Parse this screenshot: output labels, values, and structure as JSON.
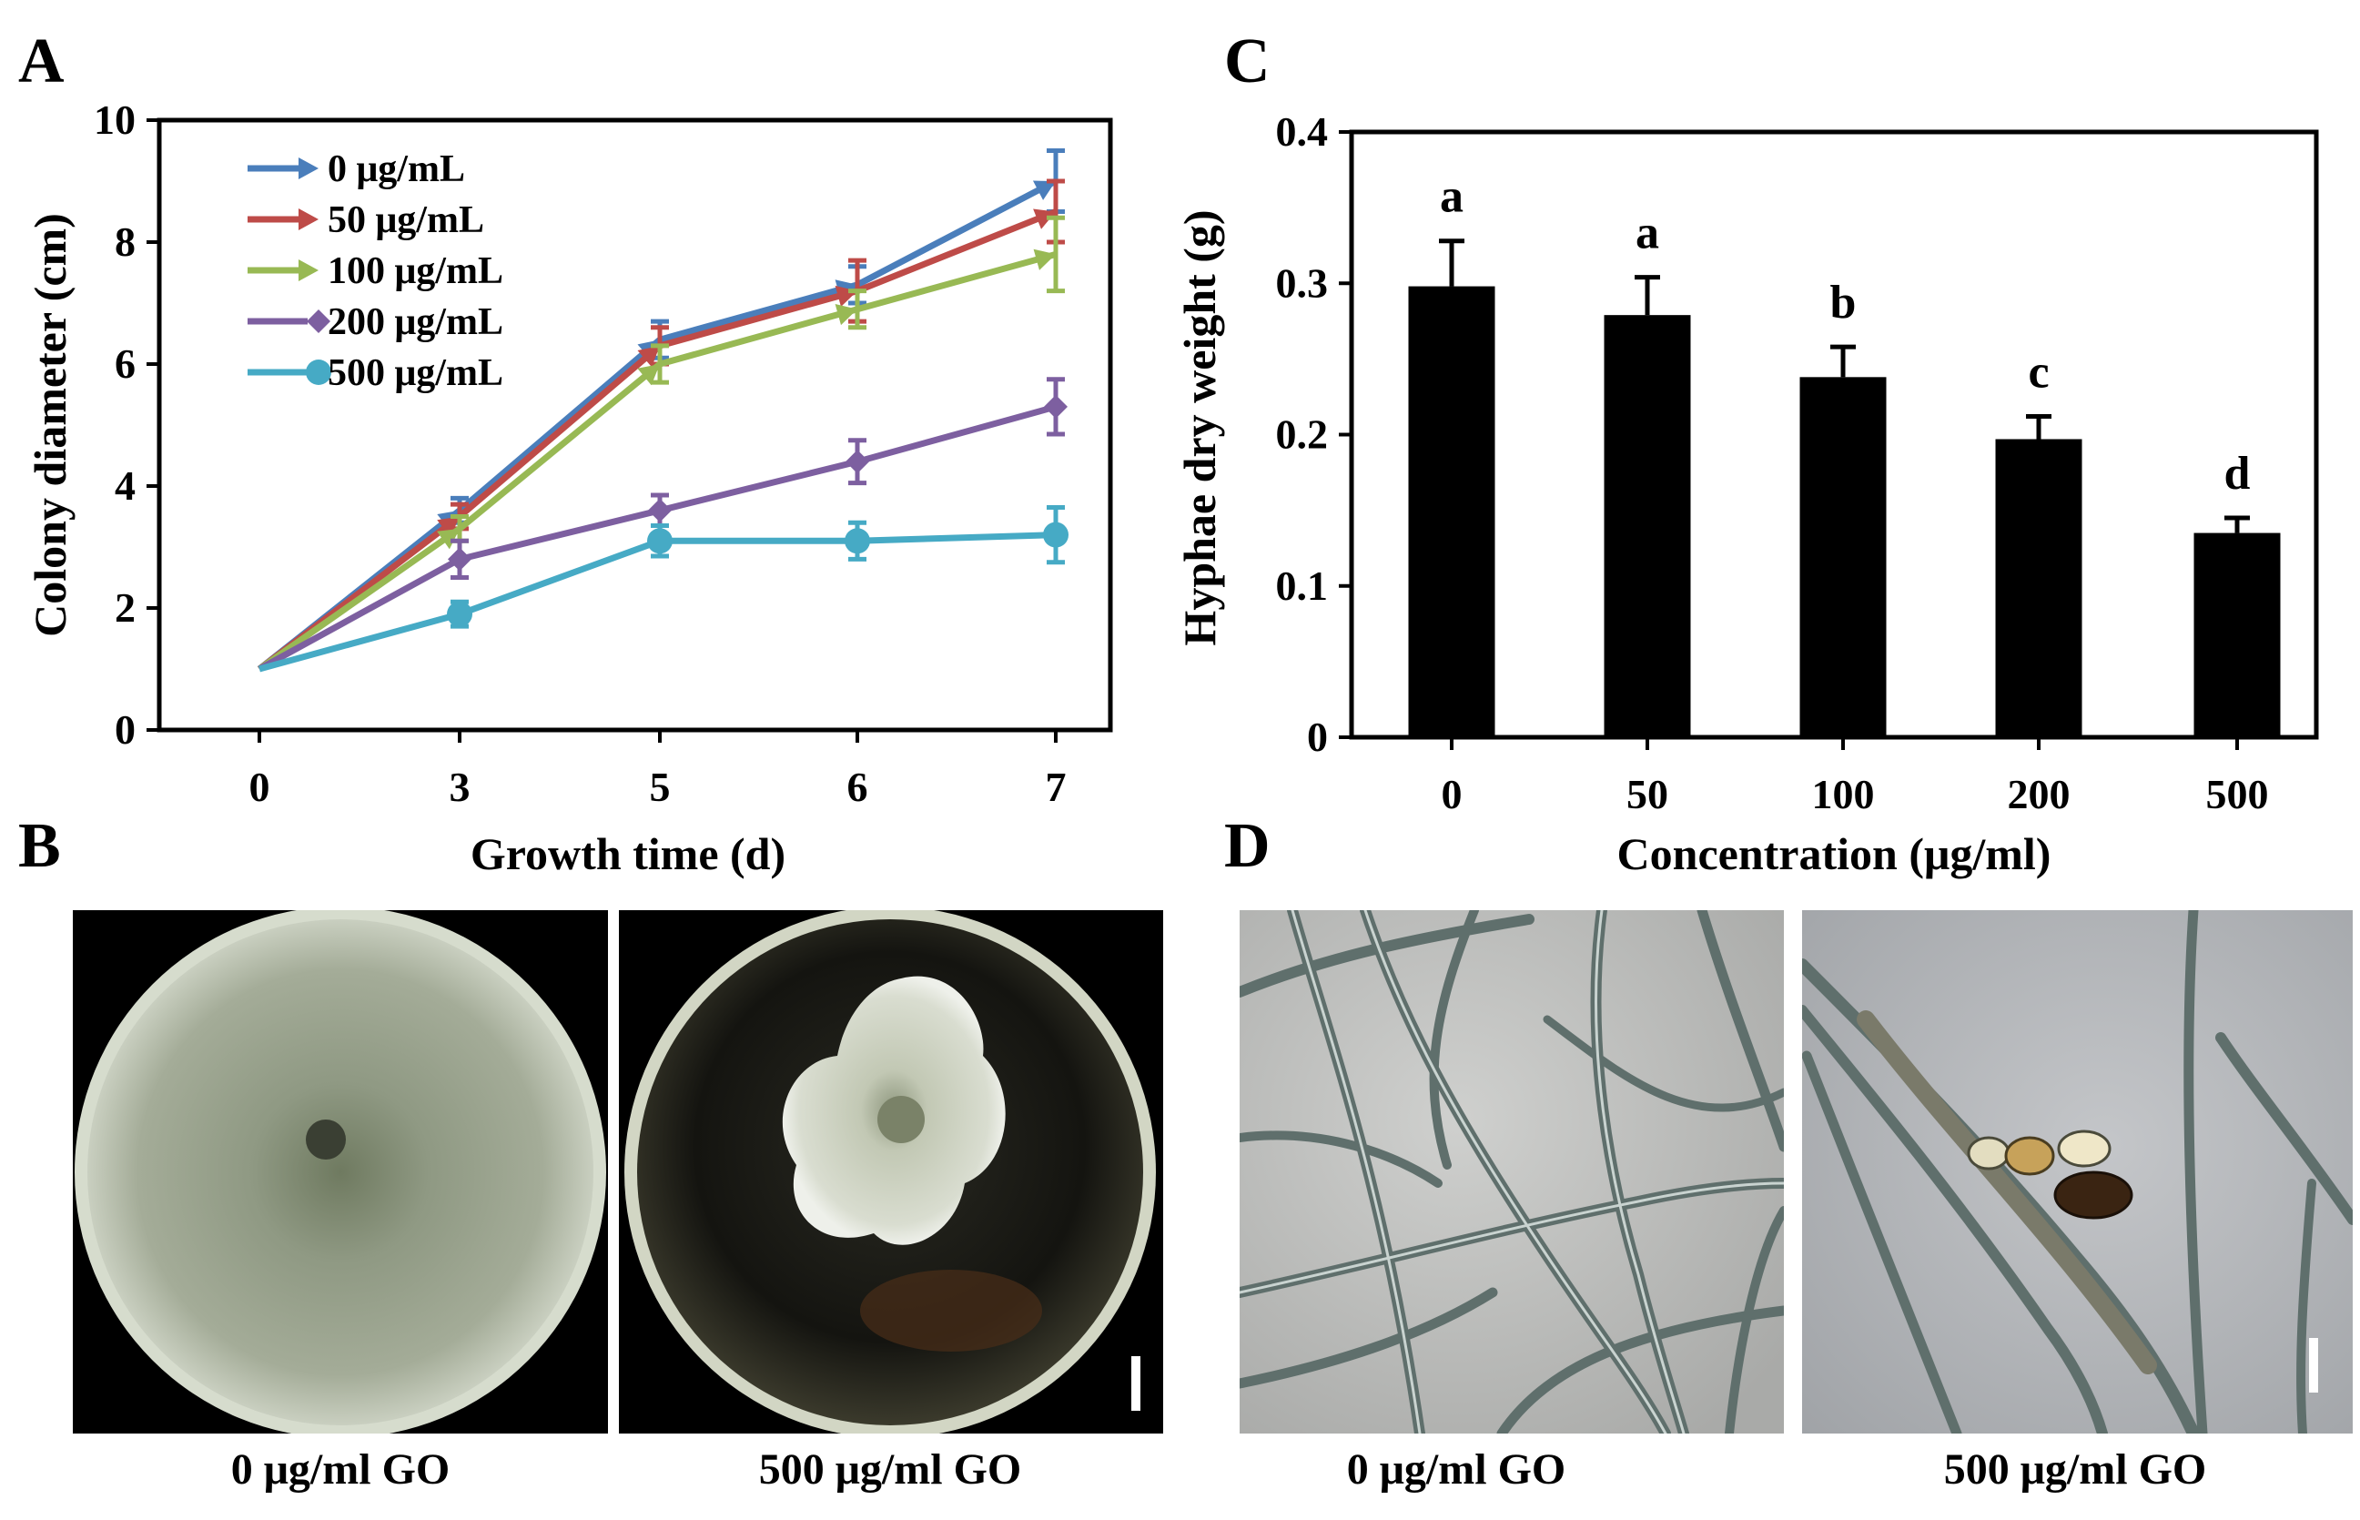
{
  "panels": {
    "A": "A",
    "B": "B",
    "C": "C",
    "D": "D"
  },
  "chart_data": [
    {
      "panel": "A",
      "type": "line",
      "x": [
        0,
        3,
        5,
        6,
        7
      ],
      "xlabel": "Growth time (d)",
      "ylabel": "Colony diameter (cm)",
      "ylim": [
        0,
        10
      ],
      "yticks": [
        0,
        2,
        4,
        6,
        8,
        10
      ],
      "legend_position": "top-left",
      "series": [
        {
          "name": "0 μg/mL",
          "color": "#4a7ebb",
          "marker": "arrow",
          "values": [
            1.0,
            3.6,
            6.4,
            7.3,
            9.0
          ],
          "errors": [
            0,
            0.2,
            0.3,
            0.3,
            0.5
          ]
        },
        {
          "name": "50 μg/mL",
          "color": "#be4b48",
          "marker": "arrow",
          "values": [
            1.0,
            3.5,
            6.3,
            7.2,
            8.5
          ],
          "errors": [
            0,
            0.2,
            0.3,
            0.5,
            0.5
          ]
        },
        {
          "name": "100 μg/mL",
          "color": "#98b954",
          "marker": "arrow",
          "values": [
            1.0,
            3.3,
            6.0,
            6.9,
            7.8
          ],
          "errors": [
            0,
            0.2,
            0.3,
            0.3,
            0.6
          ]
        },
        {
          "name": "200 μg/mL",
          "color": "#7d5fa0",
          "marker": "diamond",
          "values": [
            1.0,
            2.8,
            3.6,
            4.4,
            5.3
          ],
          "errors": [
            0,
            0.3,
            0.25,
            0.35,
            0.45
          ]
        },
        {
          "name": "500 μg/mL",
          "color": "#46aac5",
          "marker": "circle",
          "values": [
            1.0,
            1.9,
            3.1,
            3.1,
            3.2
          ],
          "errors": [
            0,
            0.2,
            0.25,
            0.3,
            0.45
          ]
        }
      ]
    },
    {
      "panel": "C",
      "type": "bar",
      "categories": [
        "0",
        "50",
        "100",
        "200",
        "500"
      ],
      "values": [
        0.298,
        0.279,
        0.238,
        0.197,
        0.135
      ],
      "errors": [
        0.03,
        0.025,
        0.02,
        0.015,
        0.01
      ],
      "significance": [
        "a",
        "a",
        "b",
        "c",
        "d"
      ],
      "xlabel": "Concentration (μg/ml)",
      "ylabel": "Hyphae dry weight (g)",
      "ylim": [
        0,
        0.4
      ],
      "yticks": [
        "0",
        "0.1",
        "0.2",
        "0.3",
        "0.4"
      ],
      "color": "#000000"
    }
  ],
  "photos": {
    "B": {
      "left_caption": "0 μg/ml GO",
      "right_caption": "500 μg/ml GO"
    },
    "D": {
      "left_caption": "0 μg/ml  GO",
      "right_caption": "500 μg/ml GO"
    }
  },
  "colors": {
    "photo_background": "#000000",
    "petri_fungus": "#8e9a80",
    "micro_background": "#c2c2c0",
    "hyphae": "#5f6f6c"
  }
}
